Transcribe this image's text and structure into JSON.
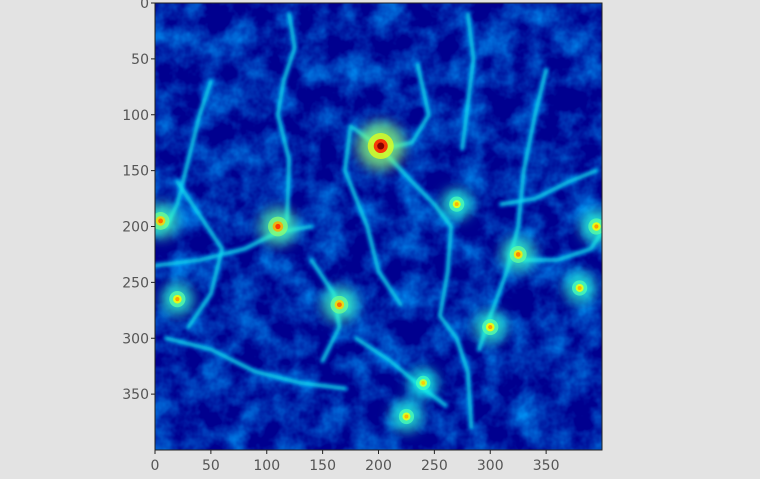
{
  "chart_data": {
    "type": "heatmap",
    "title": "",
    "xlabel": "",
    "ylabel": "",
    "xlim": [
      0,
      400
    ],
    "ylim": [
      400,
      0
    ],
    "x_ticks": [
      0,
      50,
      100,
      150,
      200,
      250,
      300,
      350
    ],
    "y_ticks": [
      0,
      50,
      100,
      150,
      200,
      250,
      300,
      350
    ],
    "x_tick_labels": [
      "0",
      "50",
      "100",
      "150",
      "200",
      "250",
      "300",
      "350"
    ],
    "y_tick_labels": [
      "0",
      "50",
      "100",
      "150",
      "200",
      "250",
      "300",
      "350"
    ],
    "colormap": "jet",
    "colors": {
      "background": "#e3e3e3",
      "low": "#00008f",
      "mid": "#0050ff",
      "high": "#ffff00",
      "peak": "#ff0000"
    },
    "hotspots": [
      {
        "x": 202,
        "y": 128,
        "intensity": 1.0
      },
      {
        "x": 110,
        "y": 200,
        "intensity": 0.65
      },
      {
        "x": 5,
        "y": 195,
        "intensity": 0.55
      },
      {
        "x": 165,
        "y": 270,
        "intensity": 0.55
      },
      {
        "x": 325,
        "y": 225,
        "intensity": 0.5
      },
      {
        "x": 20,
        "y": 265,
        "intensity": 0.45
      },
      {
        "x": 395,
        "y": 200,
        "intensity": 0.45
      },
      {
        "x": 300,
        "y": 290,
        "intensity": 0.45
      },
      {
        "x": 270,
        "y": 180,
        "intensity": 0.4
      },
      {
        "x": 225,
        "y": 370,
        "intensity": 0.4
      },
      {
        "x": 240,
        "y": 340,
        "intensity": 0.35
      },
      {
        "x": 380,
        "y": 255,
        "intensity": 0.4
      }
    ],
    "filaments": [
      [
        [
          120,
          10
        ],
        [
          125,
          40
        ],
        [
          115,
          70
        ],
        [
          110,
          100
        ],
        [
          120,
          140
        ],
        [
          118,
          195
        ]
      ],
      [
        [
          50,
          70
        ],
        [
          40,
          100
        ],
        [
          30,
          140
        ],
        [
          20,
          180
        ],
        [
          10,
          200
        ]
      ],
      [
        [
          200,
          128
        ],
        [
          230,
          160
        ],
        [
          250,
          180
        ],
        [
          265,
          200
        ],
        [
          262,
          240
        ],
        [
          255,
          280
        ],
        [
          270,
          300
        ],
        [
          280,
          330
        ],
        [
          283,
          380
        ]
      ],
      [
        [
          200,
          128
        ],
        [
          175,
          110
        ],
        [
          170,
          150
        ],
        [
          190,
          200
        ],
        [
          200,
          240
        ],
        [
          220,
          270
        ]
      ],
      [
        [
          235,
          55
        ],
        [
          245,
          100
        ],
        [
          230,
          125
        ],
        [
          205,
          130
        ]
      ],
      [
        [
          350,
          60
        ],
        [
          340,
          100
        ],
        [
          330,
          150
        ],
        [
          325,
          200
        ],
        [
          315,
          240
        ],
        [
          300,
          280
        ],
        [
          290,
          310
        ]
      ],
      [
        [
          0,
          235
        ],
        [
          40,
          230
        ],
        [
          80,
          220
        ],
        [
          110,
          205
        ],
        [
          140,
          200
        ]
      ],
      [
        [
          10,
          300
        ],
        [
          50,
          310
        ],
        [
          90,
          330
        ],
        [
          130,
          340
        ],
        [
          170,
          345
        ]
      ],
      [
        [
          180,
          300
        ],
        [
          210,
          320
        ],
        [
          240,
          345
        ],
        [
          260,
          360
        ]
      ],
      [
        [
          330,
          230
        ],
        [
          360,
          230
        ],
        [
          390,
          220
        ],
        [
          400,
          205
        ]
      ],
      [
        [
          280,
          10
        ],
        [
          285,
          50
        ],
        [
          280,
          90
        ],
        [
          275,
          130
        ]
      ],
      [
        [
          20,
          160
        ],
        [
          40,
          190
        ],
        [
          60,
          220
        ],
        [
          50,
          260
        ],
        [
          30,
          290
        ]
      ],
      [
        [
          140,
          230
        ],
        [
          160,
          260
        ],
        [
          165,
          290
        ],
        [
          150,
          320
        ]
      ],
      [
        [
          310,
          180
        ],
        [
          340,
          175
        ],
        [
          370,
          160
        ],
        [
          395,
          150
        ]
      ]
    ]
  }
}
